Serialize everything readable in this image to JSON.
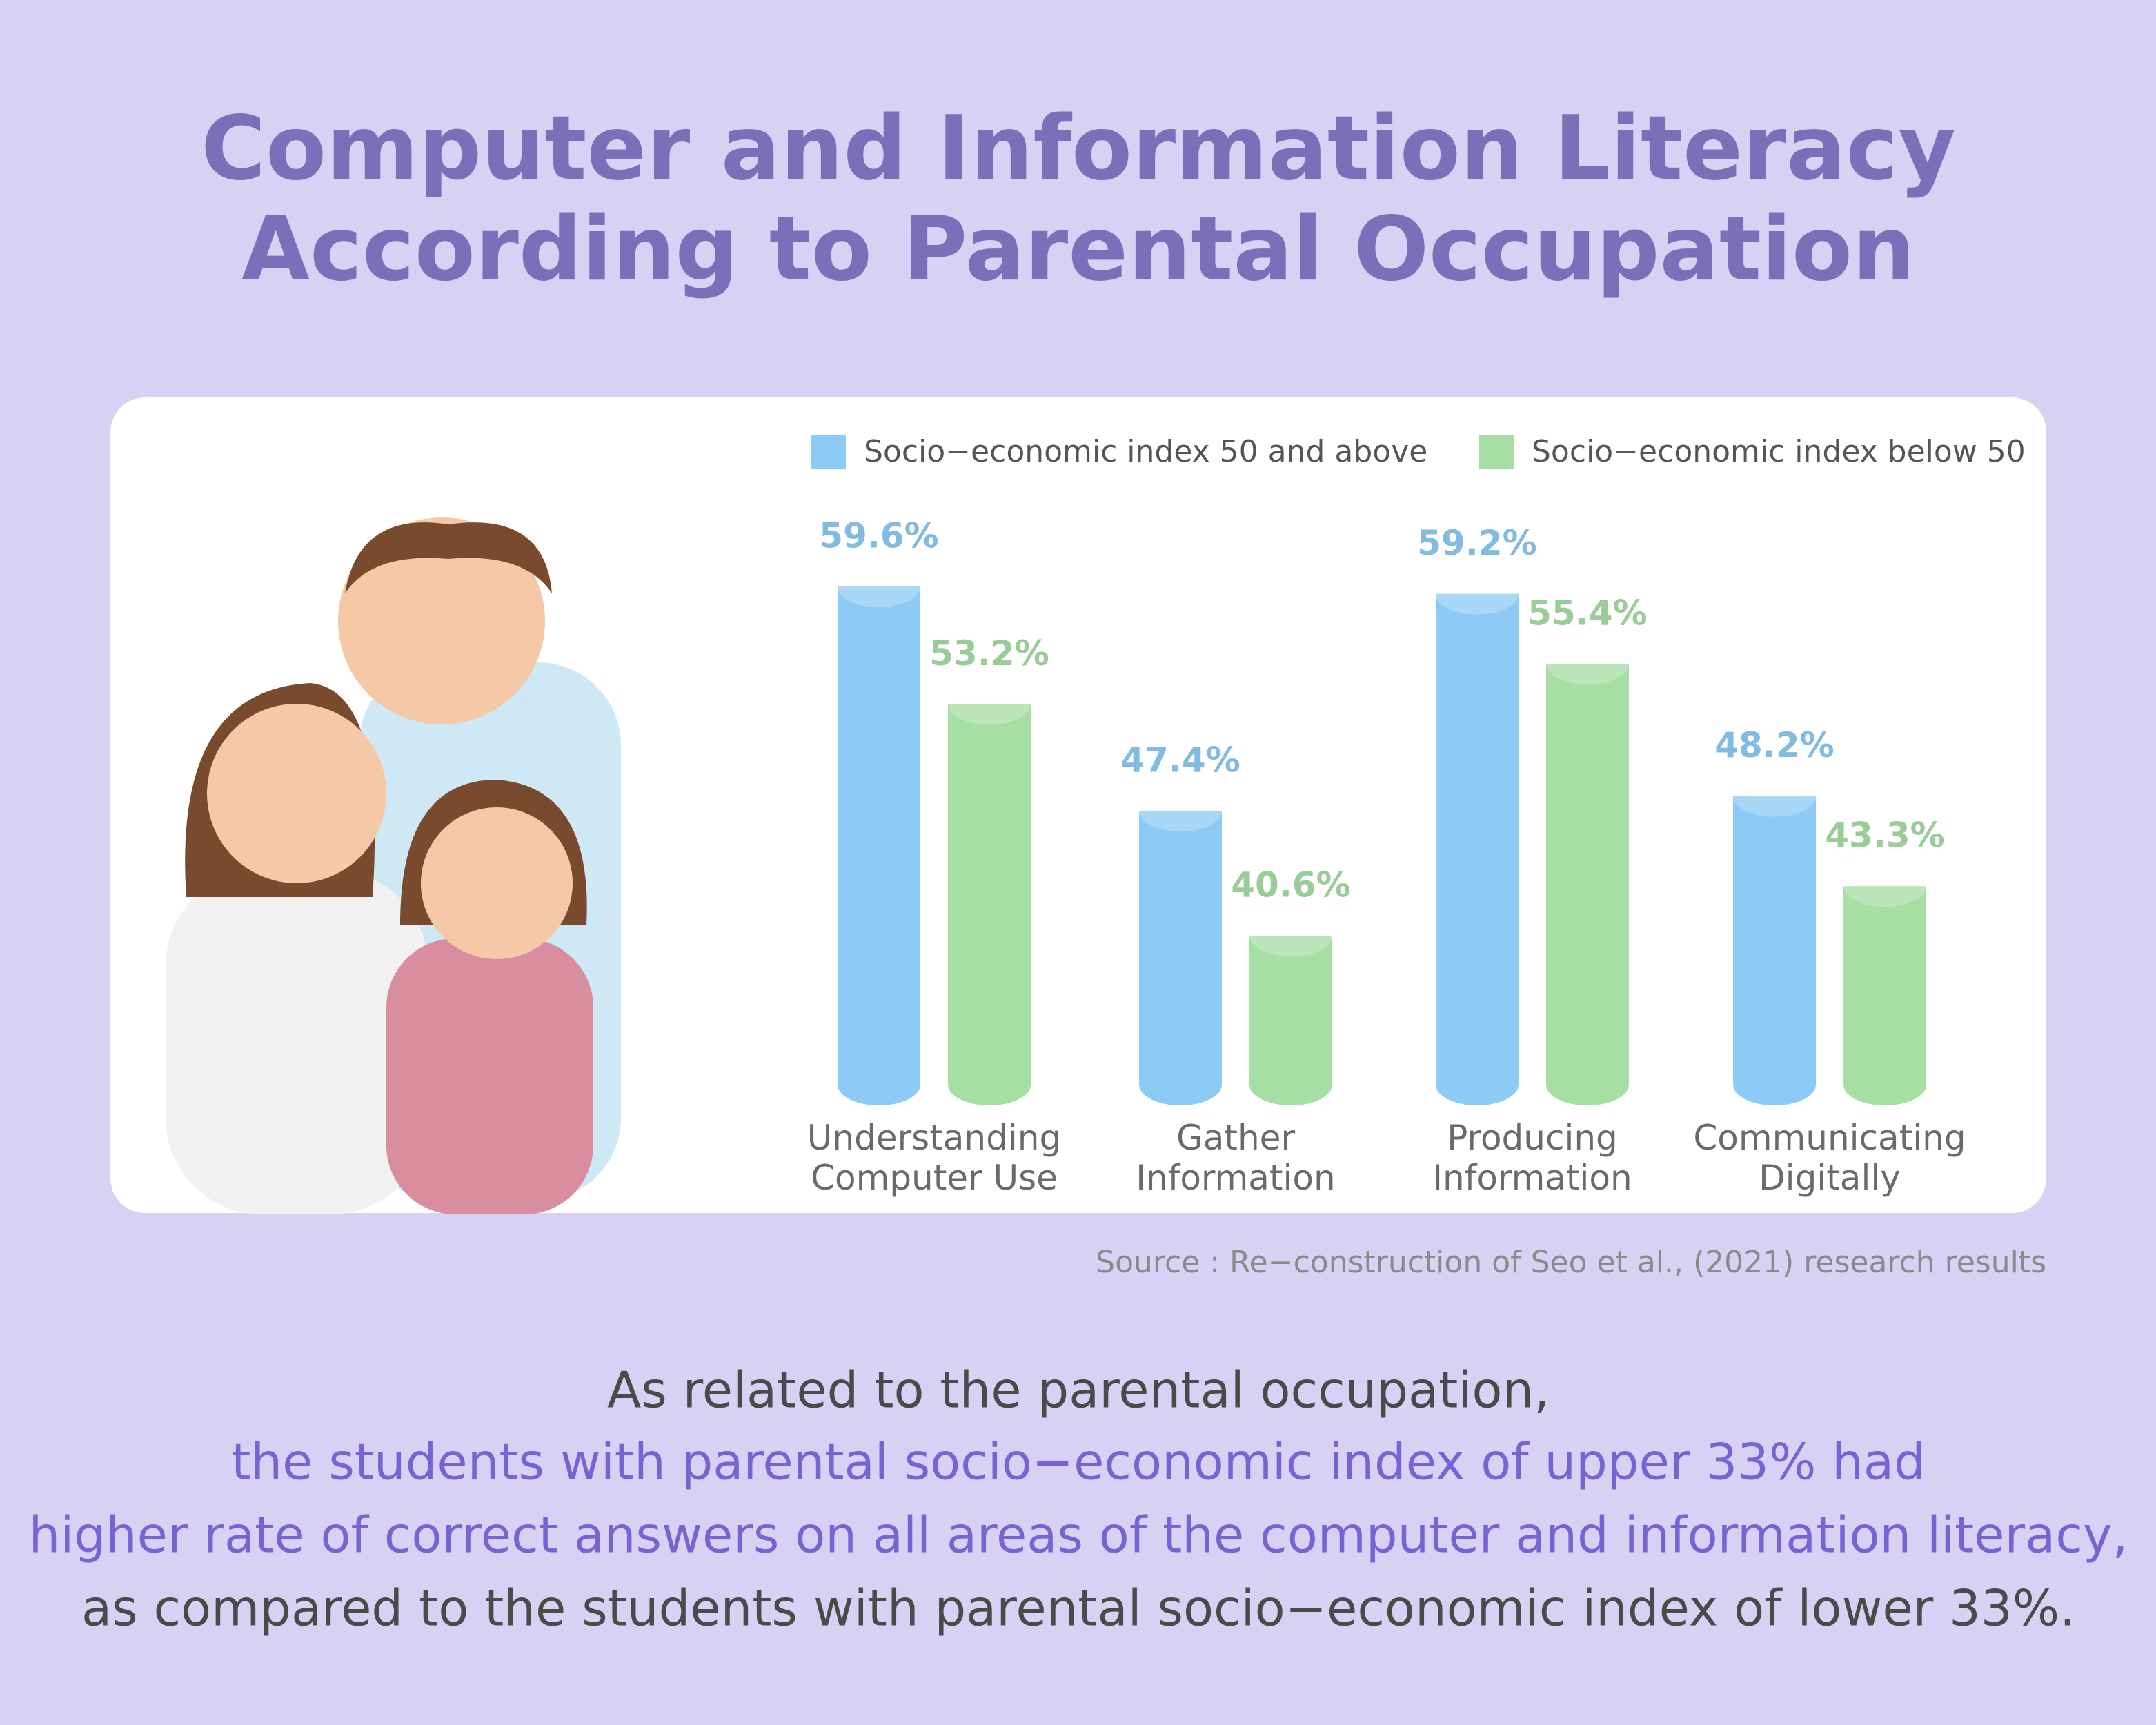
{
  "title_lines": [
    "Computer and Information Literacy",
    "According to Parental Occupation"
  ],
  "chart_data": {
    "type": "bar",
    "categories": [
      "Understanding\nComputer Use",
      "Gather\nInformation",
      "Producing\nInformation",
      "Communicating\nDigitally"
    ],
    "series": [
      {
        "name": "Socio−economic index 50 and above",
        "color": "#8ccbf5",
        "values": [
          59.6,
          47.4,
          59.2,
          48.2
        ],
        "value_labels": [
          "59.6%",
          "47.4%",
          "59.2%",
          "48.2%"
        ]
      },
      {
        "name": "Socio−economic index below 50",
        "color": "#a6dea3",
        "values": [
          53.2,
          40.6,
          55.4,
          43.3
        ],
        "value_labels": [
          "53.2%",
          "40.6%",
          "55.4%",
          "43.3%"
        ]
      }
    ]
  },
  "source": "Source : Re−construction of Seo et al., (2021) research results",
  "body_lines": [
    "As related to the parental occupation,",
    "the students with parental socio−economic index of upper 33% had",
    "higher rate of correct answers on all areas of the computer and information literacy,",
    "as compared to the students with parental socio−economic index of lower 33%."
  ]
}
